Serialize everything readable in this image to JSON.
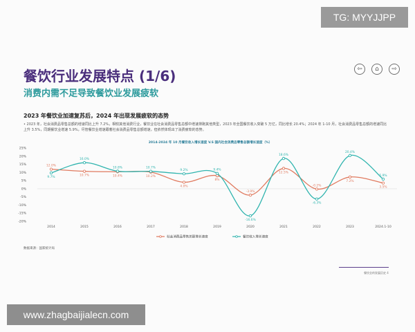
{
  "watermarks": {
    "top": "TG: MYYJJPP",
    "bottom": "www.zhagbaijialecn.com"
  },
  "header": {
    "title": "餐饮行业发展特点 (1/6)",
    "subtitle": "消费内需不足导致餐饮业发展疲软",
    "nav": [
      {
        "icon": "back-arrow-icon",
        "glyph": "⇦"
      },
      {
        "icon": "home-icon",
        "glyph": "⌂"
      },
      {
        "icon": "forward-arrow-icon",
        "glyph": "⇨"
      }
    ]
  },
  "section": {
    "heading": "2023 年餐饮业加速复苏后，2024 年出现发展疲软的态势",
    "bullet": "• 2023 年，社会消费品零售总额的增速同比上升 7.2%，相较其他消费行业，餐饮业在社会消费品零售总额中增速排跑其他类型，2023 年全国餐饮收入突破 5 万亿，同比增长 20.4%；2024 年 1-10 月，社会消费品零售总额的增速同比上升 3.5%，同期餐饮业增速 5.9%，尽管餐饮业增速跟着社会消费品零售总额增速，但依然体现出了消费疲软的态势。"
  },
  "source": "数据来源：国家统计局",
  "footer": "餐饮业的发展历史 4",
  "colors": {
    "title": "#4a2e7c",
    "subtitle": "#2c9a9c",
    "retail": "#e07a5f",
    "catering": "#2fb4ae"
  },
  "chart_data": {
    "type": "line",
    "title": "2014-2024 年 10 月餐饮收入增长速度 V.S 国内社会消费品零售总额增长速度（%）",
    "categories": [
      "2014",
      "2015",
      "2016",
      "2017",
      "2018",
      "2019",
      "2020",
      "2021",
      "2022",
      "2023",
      "2024.1-10"
    ],
    "y_ticks": [
      "25%",
      "20%",
      "15%",
      "10%",
      "5%",
      "0%",
      "-5%",
      "-10%",
      "-15%",
      "-20%"
    ],
    "ylim": [
      -20,
      25
    ],
    "grid": false,
    "legend_position": "bottom-center",
    "series": [
      {
        "name": "社会消费品零售总额增长速度",
        "color": "#e07a5f",
        "values": [
          12.0,
          10.7,
          10.4,
          10.2,
          4.0,
          8.0,
          -3.9,
          12.5,
          -0.2,
          7.2,
          3.5
        ],
        "labels": [
          "12.0%",
          "10.7%",
          "10.4%",
          "10.2%",
          "4.0%",
          "8%",
          "-3.9%",
          "12.5%",
          "-0.2%",
          "7.2%",
          "3.5%"
        ]
      },
      {
        "name": "餐饮收入增长速度",
        "color": "#2fb4ae",
        "values": [
          9.7,
          16.0,
          10.8,
          10.7,
          9.2,
          9.4,
          -16.6,
          18.6,
          -6.3,
          20.4,
          5.9
        ],
        "labels": [
          "9.7%",
          "16.0%",
          "10.8%",
          "10.7%",
          "9.2%",
          "9.4%",
          "-16.6%",
          "18.6%",
          "-6.3%",
          "20.4%",
          "5.9%"
        ]
      }
    ]
  }
}
